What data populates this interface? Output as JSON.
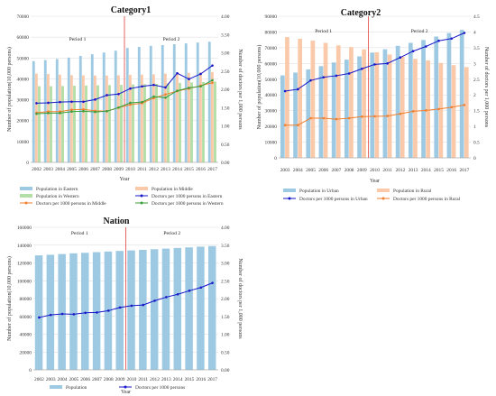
{
  "chart_data": [
    {
      "type": "bar",
      "title": "Category1",
      "xlabel": "Year",
      "ylabel": "Number of  population(10,000 persons)",
      "y2label": "Number of doctors per 1,000 persons",
      "categories": [
        "2002",
        "2003",
        "2004",
        "2005",
        "2006",
        "2007",
        "2008",
        "2009",
        "2010",
        "2011",
        "2012",
        "2013",
        "2014",
        "2015",
        "2016",
        "2017"
      ],
      "ylim": [
        0,
        70000
      ],
      "yticks": [
        "0",
        "10000",
        "20000",
        "30000",
        "40000",
        "50000",
        "60000",
        "70000"
      ],
      "y2lim": [
        0,
        4.0
      ],
      "y2ticks": [
        "0.00",
        "0.50",
        "1.00",
        "1.50",
        "2.00",
        "2.50",
        "3.00",
        "3.50",
        "4.00"
      ],
      "periods": [
        "Period 1",
        "Period 2"
      ],
      "divider_after": "2009",
      "bars": [
        {
          "name": "Population in Eastern",
          "color": "#9dc9e2",
          "values": [
            48500,
            49000,
            49500,
            50200,
            51000,
            51800,
            52600,
            53500,
            54800,
            55300,
            55800,
            56200,
            56600,
            57000,
            57400,
            57800
          ]
        },
        {
          "name": "Population in Middle",
          "color": "#f9c9a9",
          "values": [
            42500,
            42300,
            42000,
            41800,
            41700,
            41600,
            41600,
            41700,
            41900,
            42000,
            42200,
            42500,
            42700,
            42900,
            43100,
            43300
          ]
        },
        {
          "name": "Population in Western",
          "color": "#b3dfa7",
          "values": [
            36500,
            36500,
            36600,
            36700,
            36800,
            36900,
            37000,
            37100,
            37300,
            37500,
            37700,
            37900,
            38100,
            38300,
            38500,
            38700
          ]
        }
      ],
      "lines": [
        {
          "name": "Doctors per 1000 persons in Eastern",
          "color": "#1616c9",
          "values": [
            1.62,
            1.63,
            1.65,
            1.66,
            1.66,
            1.72,
            1.84,
            1.87,
            2.02,
            2.08,
            2.12,
            2.05,
            2.44,
            2.28,
            2.42,
            2.65
          ]
        },
        {
          "name": "Doctors per 1000 persons in Middle",
          "color": "#f07f2e",
          "values": [
            1.36,
            1.39,
            1.39,
            1.44,
            1.45,
            1.41,
            1.4,
            1.5,
            1.58,
            1.62,
            1.76,
            1.86,
            1.95,
            2.02,
            2.1,
            2.18
          ]
        },
        {
          "name": "Doctors per 1000 persons in Western",
          "color": "#3a9e3a",
          "values": [
            1.33,
            1.35,
            1.35,
            1.39,
            1.4,
            1.38,
            1.4,
            1.5,
            1.63,
            1.65,
            1.8,
            1.77,
            1.96,
            2.04,
            2.08,
            2.25
          ]
        }
      ],
      "legend": [
        "Population in Eastern",
        "Population in Middle",
        "Population in Western",
        "Doctors per 1000 persons in Middle",
        "Doctors per 1000 persons in Eastern",
        "Doctors per 1000 persons in Western"
      ]
    },
    {
      "type": "bar",
      "title": "Category2",
      "xlabel": "Year",
      "ylabel": "Number of  population(10,000 persons)",
      "y2label": "Number of doctors per 1,000 persons",
      "categories": [
        "2003",
        "2004",
        "2005",
        "2006",
        "2007",
        "2008",
        "2009",
        "2010",
        "2011",
        "2012",
        "2013",
        "2014",
        "2015",
        "2016",
        "2017"
      ],
      "ylim": [
        0,
        90000
      ],
      "yticks": [
        "0",
        "10000",
        "20000",
        "30000",
        "40000",
        "50000",
        "60000",
        "70000",
        "80000",
        "90000"
      ],
      "y2lim": [
        0,
        4.5
      ],
      "y2ticks": [
        "0",
        "0.5",
        "1",
        "1.5",
        "2",
        "2.5",
        "3",
        "3.5",
        "4",
        "4.5"
      ],
      "periods": [
        "Period 1",
        "Period 2"
      ],
      "divider_after": "2009",
      "bars": [
        {
          "name": "Population in Urban",
          "color": "#9dc9e2",
          "values": [
            52400,
            54200,
            56200,
            58300,
            60600,
            62400,
            64500,
            66900,
            69000,
            71200,
            73100,
            74900,
            77100,
            79300,
            81300
          ]
        },
        {
          "name": "Population in Rural",
          "color": "#f9c9a9",
          "values": [
            76800,
            75700,
            74500,
            73100,
            71500,
            70400,
            68900,
            67100,
            65700,
            64200,
            62900,
            61900,
            60300,
            58900,
            57700
          ]
        }
      ],
      "lines": [
        {
          "name": "Doctors per 1000 persons in Urban",
          "color": "#1616c9",
          "values": [
            2.12,
            2.18,
            2.46,
            2.56,
            2.61,
            2.68,
            2.83,
            2.97,
            3.0,
            3.19,
            3.39,
            3.54,
            3.72,
            3.79,
            3.97
          ]
        },
        {
          "name": "Doctors per 1000 persons in Rural",
          "color": "#f07f2e",
          "values": [
            1.04,
            1.04,
            1.26,
            1.26,
            1.23,
            1.26,
            1.31,
            1.32,
            1.33,
            1.4,
            1.48,
            1.51,
            1.55,
            1.61,
            1.68
          ]
        }
      ],
      "legend": [
        "Population in Urban",
        "Population in Rural",
        "Doctors per 1000 persons in Urban",
        "Doctors per 1000 persons in Rural"
      ]
    },
    {
      "type": "bar",
      "title": "Nation",
      "xlabel": "Year",
      "ylabel": "Number of  population(10,000 persons)",
      "y2label": "Number of doctors per 1,000 persons",
      "categories": [
        "2002",
        "2003",
        "2004",
        "2005",
        "2006",
        "2007",
        "2008",
        "2009",
        "2010",
        "2011",
        "2012",
        "2013",
        "2014",
        "2015",
        "2016",
        "2017"
      ],
      "ylim": [
        0,
        160000
      ],
      "yticks": [
        "0",
        "20000",
        "40000",
        "60000",
        "80000",
        "100000",
        "120000",
        "140000",
        "160000"
      ],
      "y2lim": [
        0,
        4.0
      ],
      "y2ticks": [
        "0.00",
        "0.50",
        "1.00",
        "1.50",
        "2.00",
        "2.50",
        "3.00",
        "3.50",
        "4.00"
      ],
      "periods": [
        "Period 1",
        "Period 2"
      ],
      "divider_after": "2009",
      "bars": [
        {
          "name": "Population",
          "color": "#9dc9e2",
          "values": [
            128500,
            129200,
            130000,
            130800,
            131400,
            132100,
            132800,
            133500,
            134100,
            134700,
            135400,
            136100,
            136800,
            137500,
            138300,
            139000
          ]
        }
      ],
      "lines": [
        {
          "name": "Doctors per 1000 persons",
          "color": "#1616c9",
          "values": [
            1.47,
            1.54,
            1.57,
            1.56,
            1.6,
            1.61,
            1.66,
            1.75,
            1.8,
            1.82,
            1.94,
            2.04,
            2.12,
            2.22,
            2.31,
            2.44
          ]
        }
      ],
      "legend": [
        "Population",
        "Doctors per 1000 persons"
      ]
    }
  ]
}
